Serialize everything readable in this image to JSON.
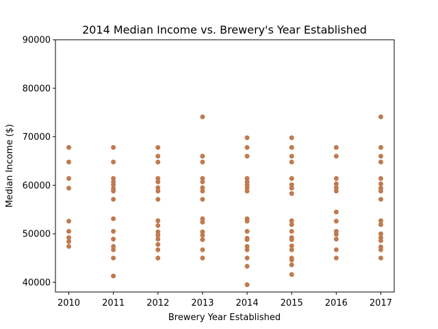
{
  "chart_data": {
    "type": "scatter",
    "title": "2014 Median Income vs. Brewery's Year Established",
    "xlabel": "Brewery Year Established",
    "ylabel": "Median Income ($)",
    "xlim": [
      2009.7,
      2017.3
    ],
    "ylim": [
      38000,
      90000
    ],
    "xticks": [
      2010,
      2011,
      2012,
      2013,
      2014,
      2015,
      2016,
      2017
    ],
    "xtick_labels": [
      "2010",
      "2011",
      "2012",
      "2013",
      "2014",
      "2015",
      "2016",
      "2017"
    ],
    "yticks": [
      40000,
      50000,
      60000,
      70000,
      80000,
      90000
    ],
    "ytick_labels": [
      "40000",
      "50000",
      "60000",
      "70000",
      "80000",
      "90000"
    ],
    "grid": false,
    "legend": "none",
    "marker_color": "#c07a50",
    "points": [
      [
        2010,
        67800
      ],
      [
        2010,
        64800
      ],
      [
        2010,
        61400
      ],
      [
        2010,
        59400
      ],
      [
        2010,
        52600
      ],
      [
        2010,
        50500
      ],
      [
        2010,
        49200
      ],
      [
        2010,
        48400
      ],
      [
        2010,
        47400
      ],
      [
        2011,
        67800
      ],
      [
        2011,
        64800
      ],
      [
        2011,
        61400
      ],
      [
        2011,
        60700
      ],
      [
        2011,
        60100
      ],
      [
        2011,
        59300
      ],
      [
        2011,
        58800
      ],
      [
        2011,
        57100
      ],
      [
        2011,
        53100
      ],
      [
        2011,
        50500
      ],
      [
        2011,
        48900
      ],
      [
        2011,
        47400
      ],
      [
        2011,
        46700
      ],
      [
        2011,
        45000
      ],
      [
        2011,
        41300
      ],
      [
        2012,
        67800
      ],
      [
        2012,
        66000
      ],
      [
        2012,
        64800
      ],
      [
        2012,
        61400
      ],
      [
        2012,
        60700
      ],
      [
        2012,
        59500
      ],
      [
        2012,
        58800
      ],
      [
        2012,
        57100
      ],
      [
        2012,
        52700
      ],
      [
        2012,
        51700
      ],
      [
        2012,
        50400
      ],
      [
        2012,
        49700
      ],
      [
        2012,
        48900
      ],
      [
        2012,
        47800
      ],
      [
        2012,
        46700
      ],
      [
        2012,
        45000
      ],
      [
        2013,
        74100
      ],
      [
        2013,
        66000
      ],
      [
        2013,
        64800
      ],
      [
        2013,
        61400
      ],
      [
        2013,
        60700
      ],
      [
        2013,
        59500
      ],
      [
        2013,
        58800
      ],
      [
        2013,
        57100
      ],
      [
        2013,
        53100
      ],
      [
        2013,
        52400
      ],
      [
        2013,
        50400
      ],
      [
        2013,
        49700
      ],
      [
        2013,
        48800
      ],
      [
        2013,
        46700
      ],
      [
        2013,
        45000
      ],
      [
        2014,
        69800
      ],
      [
        2014,
        67800
      ],
      [
        2014,
        66000
      ],
      [
        2014,
        61400
      ],
      [
        2014,
        60700
      ],
      [
        2014,
        60100
      ],
      [
        2014,
        59500
      ],
      [
        2014,
        58800
      ],
      [
        2014,
        53100
      ],
      [
        2014,
        52600
      ],
      [
        2014,
        50500
      ],
      [
        2014,
        49100
      ],
      [
        2014,
        48800
      ],
      [
        2014,
        47400
      ],
      [
        2014,
        46700
      ],
      [
        2014,
        45000
      ],
      [
        2014,
        43300
      ],
      [
        2014,
        39500
      ],
      [
        2015,
        69800
      ],
      [
        2015,
        67800
      ],
      [
        2015,
        66000
      ],
      [
        2015,
        64800
      ],
      [
        2015,
        61400
      ],
      [
        2015,
        60100
      ],
      [
        2015,
        59400
      ],
      [
        2015,
        58300
      ],
      [
        2015,
        52700
      ],
      [
        2015,
        51900
      ],
      [
        2015,
        50500
      ],
      [
        2015,
        49200
      ],
      [
        2015,
        48800
      ],
      [
        2015,
        47500
      ],
      [
        2015,
        46700
      ],
      [
        2015,
        45000
      ],
      [
        2015,
        44600
      ],
      [
        2015,
        43600
      ],
      [
        2015,
        41600
      ],
      [
        2016,
        67800
      ],
      [
        2016,
        66000
      ],
      [
        2016,
        61400
      ],
      [
        2016,
        60300
      ],
      [
        2016,
        59500
      ],
      [
        2016,
        58800
      ],
      [
        2016,
        54500
      ],
      [
        2016,
        52600
      ],
      [
        2016,
        50500
      ],
      [
        2016,
        49900
      ],
      [
        2016,
        48900
      ],
      [
        2016,
        46700
      ],
      [
        2016,
        45000
      ],
      [
        2017,
        74100
      ],
      [
        2017,
        67800
      ],
      [
        2017,
        66000
      ],
      [
        2017,
        64800
      ],
      [
        2017,
        61400
      ],
      [
        2017,
        60300
      ],
      [
        2017,
        59400
      ],
      [
        2017,
        58800
      ],
      [
        2017,
        57100
      ],
      [
        2017,
        52700
      ],
      [
        2017,
        51900
      ],
      [
        2017,
        50000
      ],
      [
        2017,
        49200
      ],
      [
        2017,
        48600
      ],
      [
        2017,
        47300
      ],
      [
        2017,
        46700
      ],
      [
        2017,
        45000
      ]
    ]
  }
}
